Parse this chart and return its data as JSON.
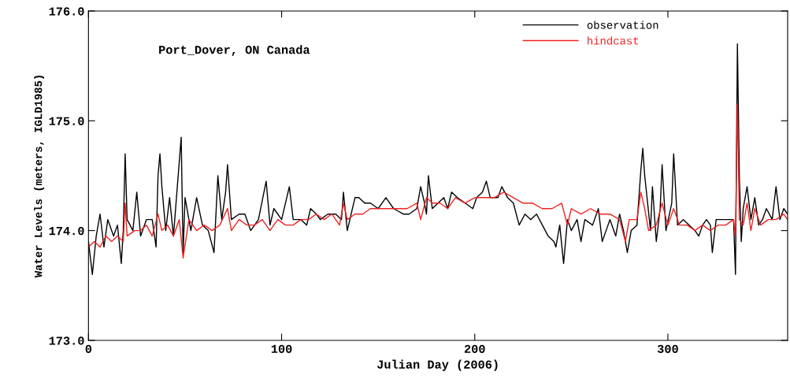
{
  "chart_data": {
    "type": "line",
    "title": "Port_Dover, ON Canada",
    "xlabel": "Julian Day (2006)",
    "ylabel": "Water Levels (meters, IGLD1985)",
    "xlim": [
      0,
      362
    ],
    "xticks": [
      0,
      100,
      200,
      300
    ],
    "ylim": [
      173.0,
      176.0
    ],
    "yticks": [
      {
        "value": 173.0,
        "label": "173.0"
      },
      {
        "value": 174.0,
        "label": "174.0"
      },
      {
        "value": 175.0,
        "label": "175.0"
      },
      {
        "value": 176.0,
        "label": "176.0"
      }
    ],
    "grid": false,
    "legend": "top right",
    "marker": "none",
    "line_style": "solid",
    "series": [
      {
        "name": "observation",
        "color": "#000000",
        "x": [
          0,
          1,
          2,
          4,
          6,
          8,
          10,
          13,
          15,
          17,
          18,
          19,
          20,
          23,
          25,
          27,
          30,
          33,
          35,
          36,
          37,
          38,
          40,
          42,
          44,
          46,
          48,
          49,
          50,
          53,
          56,
          59,
          62,
          65,
          67,
          69,
          71,
          72,
          74,
          78,
          81,
          84,
          88,
          92,
          94,
          96,
          100,
          104,
          106,
          110,
          113,
          115,
          118,
          120,
          124,
          128,
          131,
          132,
          134,
          138,
          140,
          143,
          146,
          150,
          154,
          158,
          163,
          166,
          170,
          172,
          174,
          175,
          176,
          178,
          181,
          184,
          186,
          188,
          191,
          195,
          199,
          201,
          204,
          206,
          208,
          212,
          214,
          217,
          220,
          223,
          226,
          229,
          232,
          235,
          238,
          241,
          242,
          244,
          246,
          248,
          250,
          253,
          255,
          257,
          261,
          264,
          266,
          268,
          270,
          273,
          275,
          277,
          279,
          281,
          284,
          286,
          287,
          288,
          291,
          292,
          294,
          296,
          297,
          299,
          302,
          303,
          305,
          308,
          311,
          314,
          316,
          318,
          320,
          322,
          323,
          325,
          328,
          331,
          334,
          335,
          336,
          337,
          338,
          339,
          341,
          343,
          345,
          347,
          349,
          351,
          354,
          356,
          358,
          360,
          362
        ],
        "values": [
          173.9,
          173.75,
          173.6,
          173.95,
          174.15,
          173.85,
          174.1,
          173.95,
          174.05,
          173.7,
          174.0,
          174.7,
          174.1,
          174.0,
          174.35,
          173.95,
          174.1,
          174.1,
          173.85,
          174.5,
          174.7,
          174.4,
          174.0,
          174.3,
          173.95,
          174.4,
          174.85,
          173.8,
          174.3,
          174.0,
          174.3,
          174.05,
          174.0,
          173.8,
          174.5,
          174.1,
          174.35,
          174.6,
          174.1,
          174.15,
          174.15,
          174.0,
          174.1,
          174.45,
          174.05,
          174.2,
          174.1,
          174.4,
          174.1,
          174.1,
          174.05,
          174.2,
          174.15,
          174.1,
          174.15,
          174.15,
          174.1,
          174.35,
          174.0,
          174.3,
          174.3,
          174.25,
          174.25,
          174.2,
          174.3,
          174.2,
          174.15,
          174.15,
          174.2,
          174.4,
          174.25,
          174.15,
          174.5,
          174.2,
          174.25,
          174.3,
          174.2,
          174.35,
          174.3,
          174.25,
          174.2,
          174.3,
          174.35,
          174.45,
          174.3,
          174.3,
          174.4,
          174.3,
          174.25,
          174.05,
          174.15,
          174.1,
          174.15,
          174.05,
          173.95,
          173.9,
          173.85,
          174.05,
          173.7,
          174.1,
          174.0,
          174.1,
          173.9,
          174.1,
          174.05,
          174.2,
          173.9,
          174.0,
          174.1,
          173.95,
          174.15,
          174.0,
          173.8,
          174.0,
          174.05,
          174.55,
          174.75,
          174.5,
          174.0,
          174.4,
          173.9,
          174.2,
          174.6,
          174.0,
          174.25,
          174.7,
          174.05,
          174.1,
          174.05,
          174.0,
          173.95,
          174.05,
          174.1,
          174.05,
          173.8,
          174.1,
          174.1,
          174.1,
          174.1,
          173.6,
          175.7,
          174.5,
          173.9,
          174.2,
          174.4,
          174.1,
          174.3,
          174.05,
          174.1,
          174.2,
          174.1,
          174.4,
          174.1,
          174.2,
          174.15
        ]
      },
      {
        "name": "hindcast",
        "color": "#ee2222",
        "x": [
          0,
          3,
          6,
          9,
          12,
          15,
          18,
          19,
          20,
          24,
          27,
          30,
          33,
          36,
          38,
          41,
          44,
          47,
          49,
          52,
          56,
          60,
          64,
          68,
          72,
          74,
          78,
          82,
          86,
          90,
          94,
          98,
          102,
          106,
          110,
          114,
          118,
          122,
          126,
          130,
          132,
          134,
          138,
          142,
          146,
          150,
          155,
          160,
          165,
          170,
          172,
          175,
          178,
          182,
          186,
          190,
          195,
          200,
          205,
          210,
          215,
          220,
          225,
          230,
          235,
          240,
          245,
          248,
          250,
          255,
          260,
          265,
          270,
          275,
          278,
          280,
          284,
          286,
          288,
          290,
          294,
          297,
          300,
          303,
          306,
          310,
          314,
          318,
          322,
          326,
          330,
          334,
          335,
          336,
          337,
          339,
          341,
          343,
          345,
          348,
          352,
          356,
          360,
          362
        ],
        "values": [
          173.85,
          173.9,
          173.85,
          173.95,
          173.9,
          173.95,
          173.9,
          174.25,
          173.95,
          174.0,
          174.0,
          174.05,
          173.95,
          174.15,
          174.0,
          174.05,
          173.95,
          174.1,
          173.75,
          174.1,
          174.0,
          174.05,
          174.0,
          174.05,
          174.2,
          174.0,
          174.1,
          174.05,
          174.05,
          174.1,
          174.0,
          174.1,
          174.05,
          174.05,
          174.1,
          174.1,
          174.15,
          174.1,
          174.15,
          174.05,
          174.25,
          174.1,
          174.15,
          174.15,
          174.2,
          174.2,
          174.2,
          174.2,
          174.2,
          174.25,
          174.1,
          174.3,
          174.25,
          174.25,
          174.2,
          174.3,
          174.25,
          174.3,
          174.3,
          174.3,
          174.35,
          174.3,
          174.25,
          174.25,
          174.2,
          174.2,
          174.25,
          174.05,
          174.2,
          174.15,
          174.2,
          174.15,
          174.15,
          174.1,
          173.9,
          174.1,
          174.1,
          174.35,
          174.2,
          174.0,
          174.05,
          174.25,
          174.05,
          174.2,
          174.05,
          174.05,
          174.0,
          174.05,
          174.0,
          174.05,
          174.05,
          174.1,
          173.95,
          175.15,
          174.1,
          174.05,
          174.25,
          174.0,
          174.2,
          174.05,
          174.1,
          174.1,
          174.15,
          174.1
        ]
      }
    ]
  }
}
